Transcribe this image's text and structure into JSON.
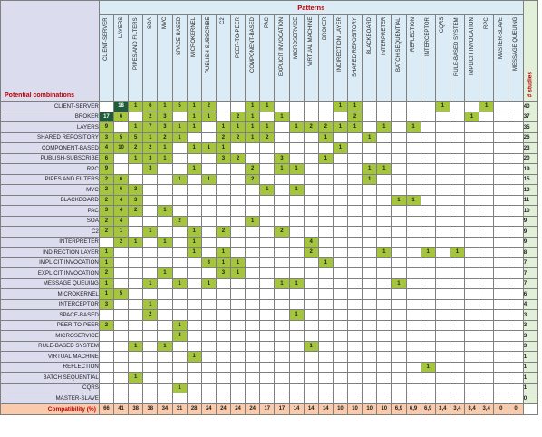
{
  "header": {
    "patterns_label": "Patterns",
    "potential_label": "Potential combinations",
    "studies_label": "# studies",
    "compat_label": "Compatibility (%)"
  },
  "columns": [
    "CLIENT-SERVER",
    "LAYERS",
    "PIPES AND FILTERS",
    "SOA",
    "MVC",
    "SPACE-BASED",
    "MICROKERNEL",
    "PUBLISH-SUBSCRIBE",
    "C2",
    "PEER-TO-PEER",
    "COMPONENT-BASED",
    "PAC",
    "EXPLICIT INVOCATION",
    "MICROSERVICE",
    "VIRTUAL MACHINE",
    "BROKER",
    "INDIRECTION LAYER",
    "SHARED REPOSITORY",
    "BLACKBOARD",
    "INTERPRETER",
    "BATCH SEQUENTIAL",
    "REFLECTION",
    "INTERCEPTOR",
    "CQRS",
    "RULE-BASED SYSTEM",
    "IMPLICIT INVOCATION",
    "RPC",
    "MASTER-SLAVE",
    "MESSAGE QUEUING"
  ],
  "rows": [
    {
      "label": "CLIENT-SERVER",
      "studies": "40",
      "cells": [
        "",
        "18",
        "1",
        "6",
        "1",
        "5",
        "1",
        "2",
        "",
        "",
        "1",
        "1",
        "",
        "",
        "",
        "",
        "1",
        "1",
        "",
        "",
        "",
        "",
        "",
        "1",
        "",
        "",
        "1",
        "",
        ""
      ]
    },
    {
      "label": "BROKER",
      "studies": "37",
      "cells": [
        "17",
        "6",
        "",
        "2",
        "3",
        "",
        "1",
        "1",
        "",
        "2",
        "1",
        "",
        "1",
        "",
        "",
        "",
        "",
        "2",
        "",
        "",
        "",
        "",
        "",
        "",
        "",
        "1",
        "",
        "",
        ""
      ]
    },
    {
      "label": "LAYERS",
      "studies": "35",
      "cells": [
        "9",
        "",
        "1",
        "7",
        "3",
        "1",
        "1",
        "",
        "1",
        "1",
        "1",
        "1",
        "",
        "1",
        "2",
        "2",
        "1",
        "1",
        "",
        "1",
        "",
        "1",
        "",
        "",
        "",
        "",
        "",
        "",
        ""
      ]
    },
    {
      "label": "SHARED REPOSITORY",
      "studies": "26",
      "cells": [
        "3",
        "5",
        "5",
        "1",
        "2",
        "1",
        "",
        "",
        "2",
        "2",
        "1",
        "2",
        "",
        "",
        "",
        "1",
        "",
        "",
        "1",
        "",
        "",
        "",
        "",
        "",
        "",
        "",
        "",
        "",
        ""
      ]
    },
    {
      "label": "COMPONENT-BASED",
      "studies": "23",
      "cells": [
        "4",
        "10",
        "2",
        "2",
        "1",
        "",
        "1",
        "1",
        "1",
        "",
        "",
        "",
        "",
        "",
        "",
        "",
        "1",
        "",
        "",
        "",
        "",
        "",
        "",
        "",
        "",
        "",
        "",
        "",
        ""
      ]
    },
    {
      "label": "PUBLISH-SUBSCRIBE",
      "studies": "20",
      "cells": [
        "6",
        "",
        "1",
        "3",
        "1",
        "",
        "",
        "",
        "3",
        "2",
        "",
        "",
        "3",
        "",
        "",
        "1",
        "",
        "",
        "",
        "",
        "",
        "",
        "",
        "",
        "",
        "",
        "",
        "",
        ""
      ]
    },
    {
      "label": "RPC",
      "studies": "19",
      "cells": [
        "9",
        "",
        "",
        "3",
        "",
        "",
        "1",
        "",
        "",
        "",
        "2",
        "",
        "1",
        "1",
        "",
        "",
        "",
        "",
        "1",
        "1",
        "",
        "",
        "",
        "",
        "",
        "",
        "",
        "",
        ""
      ]
    },
    {
      "label": "PIPES AND FILTERS",
      "studies": "15",
      "cells": [
        "2",
        "6",
        "",
        "",
        "",
        "1",
        "",
        "1",
        "",
        "",
        "2",
        "",
        "",
        "",
        "",
        "",
        "",
        "",
        "1",
        "",
        "",
        "",
        "",
        "",
        "",
        "",
        "",
        "",
        ""
      ]
    },
    {
      "label": "MVC",
      "studies": "13",
      "cells": [
        "2",
        "6",
        "3",
        "",
        "",
        "",
        "",
        "",
        "",
        "",
        "",
        "1",
        "",
        "1",
        "",
        "",
        "",
        "",
        "",
        "",
        "",
        "",
        "",
        "",
        "",
        "",
        "",
        "",
        ""
      ]
    },
    {
      "label": "BLACKBOARD",
      "studies": "11",
      "cells": [
        "2",
        "4",
        "3",
        "",
        "",
        "",
        "",
        "",
        "",
        "",
        "",
        "",
        "",
        "",
        "",
        "",
        "",
        "",
        "",
        "",
        "1",
        "1",
        "",
        "",
        "",
        "",
        "",
        "",
        ""
      ]
    },
    {
      "label": "PAC",
      "studies": "10",
      "cells": [
        "3",
        "4",
        "2",
        "",
        "1",
        "",
        "",
        "",
        "",
        "",
        "",
        "",
        "",
        "",
        "",
        "",
        "",
        "",
        "",
        "",
        "",
        "",
        "",
        "",
        "",
        "",
        "",
        "",
        ""
      ]
    },
    {
      "label": "SOA",
      "studies": "9",
      "cells": [
        "2",
        "4",
        "",
        "",
        "",
        "2",
        "",
        "",
        "",
        "",
        "1",
        "",
        "",
        "",
        "",
        "",
        "",
        "",
        "",
        "",
        "",
        "",
        "",
        "",
        "",
        "",
        "",
        "",
        ""
      ]
    },
    {
      "label": "C2",
      "studies": "9",
      "cells": [
        "2",
        "1",
        "",
        "1",
        "",
        "",
        "1",
        "",
        "2",
        "",
        "",
        "",
        "2",
        "",
        "",
        "",
        "",
        "",
        "",
        "",
        "",
        "",
        "",
        "",
        "",
        "",
        "",
        "",
        ""
      ]
    },
    {
      "label": "INTERPRETER",
      "studies": "9",
      "cells": [
        "",
        "2",
        "1",
        "",
        "1",
        "",
        "1",
        "",
        "",
        "",
        "",
        "",
        "",
        "",
        "4",
        "",
        "",
        "",
        "",
        "",
        "",
        "",
        "",
        "",
        "",
        "",
        "",
        "",
        ""
      ]
    },
    {
      "label": "INDIRECTION LAYER",
      "studies": "8",
      "cells": [
        "1",
        "",
        "",
        "",
        "",
        "",
        "1",
        "",
        "1",
        "",
        "",
        "",
        "",
        "",
        "2",
        "",
        "",
        "",
        "",
        "1",
        "",
        "",
        "1",
        "",
        "1",
        "",
        "",
        "",
        ""
      ]
    },
    {
      "label": "IMPLICIT INVOCATION",
      "studies": "7",
      "cells": [
        "1",
        "",
        "",
        "",
        "",
        "",
        "",
        "3",
        "1",
        "1",
        "",
        "",
        "",
        "",
        "",
        "1",
        "",
        "",
        "",
        "",
        "",
        "",
        "",
        "",
        "",
        "",
        "",
        "",
        ""
      ]
    },
    {
      "label": "EXPLICIT INVOCATION",
      "studies": "7",
      "cells": [
        "2",
        "",
        "",
        "",
        "1",
        "",
        "",
        "",
        "3",
        "1",
        "",
        "",
        "",
        "",
        "",
        "",
        "",
        "",
        "",
        "",
        "",
        "",
        "",
        "",
        "",
        "",
        "",
        "",
        ""
      ]
    },
    {
      "label": "MESSAGE QUEUING",
      "studies": "7",
      "cells": [
        "1",
        "",
        "",
        "1",
        "",
        "1",
        "",
        "1",
        "",
        "",
        "",
        "",
        "1",
        "1",
        "",
        "",
        "",
        "",
        "",
        "",
        "1",
        "",
        "",
        "",
        "",
        "",
        "",
        "",
        ""
      ]
    },
    {
      "label": "MICROKERNEL",
      "studies": "6",
      "cells": [
        "1",
        "5",
        "",
        "",
        "",
        "",
        "",
        "",
        "",
        "",
        "",
        "",
        "",
        "",
        "",
        "",
        "",
        "",
        "",
        "",
        "",
        "",
        "",
        "",
        "",
        "",
        "",
        "",
        ""
      ]
    },
    {
      "label": "INTERCEPTOR",
      "studies": "4",
      "cells": [
        "3",
        "",
        "",
        "1",
        "",
        "",
        "",
        "",
        "",
        "",
        "",
        "",
        "",
        "",
        "",
        "",
        "",
        "",
        "",
        "",
        "",
        "",
        "",
        "",
        "",
        "",
        "",
        "",
        ""
      ]
    },
    {
      "label": "SPACE-BASED",
      "studies": "3",
      "cells": [
        "",
        "",
        "",
        "2",
        "",
        "",
        "",
        "",
        "",
        "",
        "",
        "",
        "",
        "1",
        "",
        "",
        "",
        "",
        "",
        "",
        "",
        "",
        "",
        "",
        "",
        "",
        "",
        "",
        ""
      ]
    },
    {
      "label": "PEER-TO-PEER",
      "studies": "3",
      "cells": [
        "2",
        "",
        "",
        "",
        "",
        "1",
        "",
        "",
        "",
        "",
        "",
        "",
        "",
        "",
        "",
        "",
        "",
        "",
        "",
        "",
        "",
        "",
        "",
        "",
        "",
        "",
        "",
        "",
        ""
      ]
    },
    {
      "label": "MICROSERVICE",
      "studies": "3",
      "cells": [
        "",
        "",
        "",
        "",
        "",
        "3",
        "",
        "",
        "",
        "",
        "",
        "",
        "",
        "",
        "",
        "",
        "",
        "",
        "",
        "",
        "",
        "",
        "",
        "",
        "",
        "",
        "",
        "",
        ""
      ]
    },
    {
      "label": "RULE-BASED SYSTEM",
      "studies": "3",
      "cells": [
        "",
        "",
        "1",
        "",
        "1",
        "",
        "",
        "",
        "",
        "",
        "",
        "",
        "",
        "",
        "1",
        "",
        "",
        "",
        "",
        "",
        "",
        "",
        "",
        "",
        "",
        "",
        "",
        "",
        ""
      ]
    },
    {
      "label": "VIRTUAL MACHINE",
      "studies": "1",
      "cells": [
        "",
        "",
        "",
        "",
        "",
        "",
        "1",
        "",
        "",
        "",
        "",
        "",
        "",
        "",
        "",
        "",
        "",
        "",
        "",
        "",
        "",
        "",
        "",
        "",
        "",
        "",
        "",
        "",
        ""
      ]
    },
    {
      "label": "REFLECTION",
      "studies": "1",
      "cells": [
        "",
        "",
        "",
        "",
        "",
        "",
        "",
        "",
        "",
        "",
        "",
        "",
        "",
        "",
        "",
        "",
        "",
        "",
        "",
        "",
        "",
        "",
        "1",
        "",
        "",
        "",
        "",
        "",
        ""
      ]
    },
    {
      "label": "BATCH SEQUENTIAL",
      "studies": "1",
      "cells": [
        "",
        "",
        "1",
        "",
        "",
        "",
        "",
        "",
        "",
        "",
        "",
        "",
        "",
        "",
        "",
        "",
        "",
        "",
        "",
        "",
        "",
        "",
        "",
        "",
        "",
        "",
        "",
        "",
        ""
      ]
    },
    {
      "label": "CQRS",
      "studies": "1",
      "cells": [
        "",
        "",
        "",
        "",
        "",
        "1",
        "",
        "",
        "",
        "",
        "",
        "",
        "",
        "",
        "",
        "",
        "",
        "",
        "",
        "",
        "",
        "",
        "",
        "",
        "",
        "",
        "",
        "",
        ""
      ]
    },
    {
      "label": "MASTER-SLAVE",
      "studies": "0",
      "cells": [
        "",
        "",
        "",
        "",
        "",
        "",
        "",
        "",
        "",
        "",
        "",
        "",
        "",
        "",
        "",
        "",
        "",
        "",
        "",
        "",
        "",
        "",
        "",
        "",
        "",
        "",
        "",
        "",
        ""
      ]
    }
  ],
  "compatibility": [
    "66",
    "41",
    "38",
    "38",
    "34",
    "31",
    "28",
    "24",
    "24",
    "24",
    "24",
    "17",
    "17",
    "14",
    "14",
    "14",
    "10",
    "10",
    "10",
    "10",
    "6,9",
    "6,9",
    "6,9",
    "3,4",
    "3,4",
    "3,4",
    "3,4",
    "0",
    "0"
  ],
  "colors": {
    "cell_on": "#a6c53f",
    "cell_dark": "#1f5c37",
    "header_blue": "#dcecf7",
    "row_label": "#dcdcef",
    "studies": "#e2efd9",
    "footer": "#f8cbad",
    "accent_red": "#c00000"
  }
}
